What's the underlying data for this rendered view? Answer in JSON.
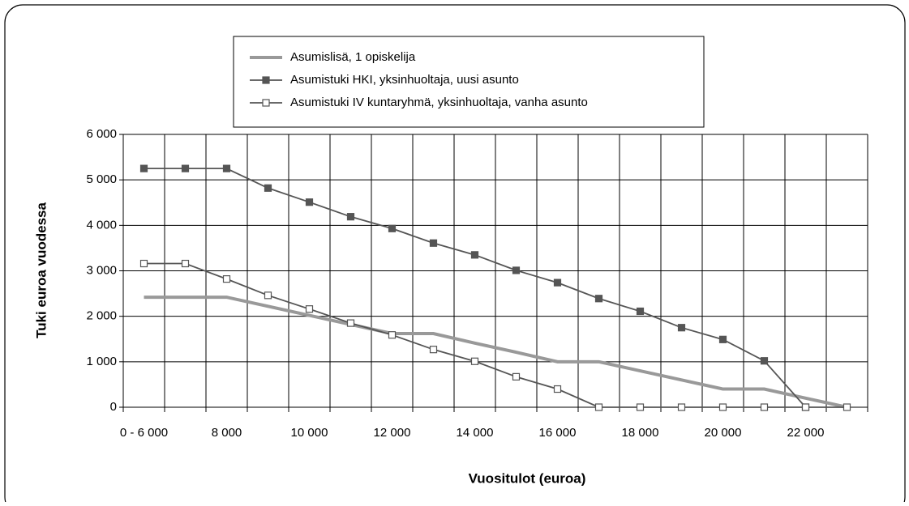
{
  "chart_data": {
    "type": "line",
    "categories": [
      "0 - 6 000",
      null,
      "8 000",
      null,
      "10 000",
      null,
      "12 000",
      null,
      "14 000",
      null,
      "16 000",
      null,
      "18 000",
      null,
      "20 000",
      null,
      "22 000",
      null
    ],
    "series": [
      {
        "name": "Asumislisä, 1 opiskelija",
        "color": "#999999",
        "marker": "none",
        "values": [
          2420,
          2420,
          2420,
          2220,
          2020,
          1820,
          1620,
          1620,
          1410,
          1210,
          1000,
          1000,
          800,
          600,
          400,
          400,
          200,
          0
        ]
      },
      {
        "name": "Asumistuki HKI, yksinhuoltaja, uusi asunto",
        "color": "#555555",
        "marker": "filled",
        "values": [
          5250,
          5250,
          5250,
          4820,
          4510,
          4190,
          3930,
          3610,
          3350,
          3010,
          2740,
          2390,
          2110,
          1750,
          1490,
          1020,
          0,
          null
        ]
      },
      {
        "name": "Asumistuki IV kuntaryhmä, yksinhuoltaja, vanha asunto",
        "color": "#555555",
        "marker": "hollow",
        "values": [
          3160,
          3160,
          2820,
          2460,
          2160,
          1850,
          1590,
          1270,
          1010,
          670,
          400,
          0,
          0,
          0,
          0,
          0,
          0,
          0
        ]
      }
    ],
    "xlabel": "Vuositulot (euroa)",
    "ylabel": "Tuki euroa vuodessa",
    "ylim": [
      0,
      6000
    ],
    "yticks": [
      0,
      {
        "value": 1000,
        "label": "1 000"
      },
      {
        "value": 2000,
        "label": "2 000"
      },
      {
        "value": 3000,
        "label": "3 000"
      },
      {
        "value": 4000,
        "label": "4 000"
      },
      {
        "value": 5000,
        "label": "5 000"
      },
      {
        "value": 6000,
        "label": "6 000"
      }
    ],
    "grid": true
  }
}
